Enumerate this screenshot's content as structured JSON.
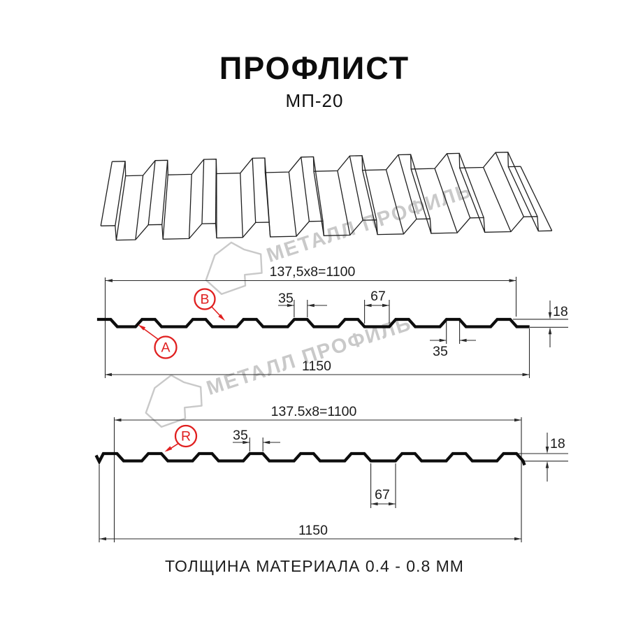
{
  "title": "ПРОФЛИСТ",
  "subtitle": "МП-20",
  "footer_note": "ТОЛЩИНА МАТЕРИАЛА 0.4 - 0.8 ММ",
  "watermark": {
    "text": "МЕТАЛЛ ПРОФИЛЬ"
  },
  "colors": {
    "line_strong": "#0d0d0d",
    "line_thin": "#2a2a2a",
    "sketch": "#1f1f1f",
    "red": "#e01f1f",
    "watermark": "#c9c9c9"
  },
  "section1": {
    "top_width_label": "137,5x8=1100",
    "total_width_label": "1150",
    "rib_top_label": "35",
    "valley_label": "67",
    "rib_bottom_label": "35",
    "height_label": "18",
    "marker_a": "A",
    "marker_b": "B"
  },
  "section2": {
    "top_width_label": "137.5x8=1100",
    "total_width_label": "1150",
    "rib_top_label": "35",
    "valley_label": "67",
    "height_label": "18",
    "marker_r": "R"
  }
}
